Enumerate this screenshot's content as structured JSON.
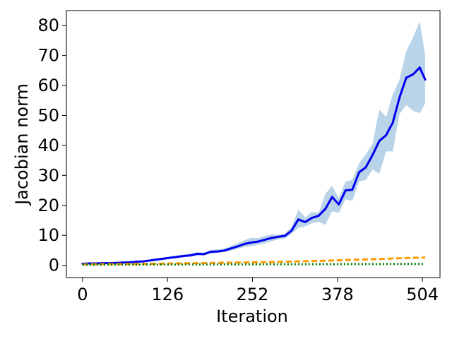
{
  "chart_data": {
    "type": "line",
    "title": "",
    "xlabel": "Iteration",
    "ylabel": "Jacobian norm",
    "xlim": [
      -24,
      530
    ],
    "ylim": [
      -4.1,
      85
    ],
    "xticks": [
      0,
      126,
      252,
      378,
      504
    ],
    "yticks": [
      0,
      10,
      20,
      30,
      40,
      50,
      60,
      70,
      80
    ],
    "grid": false,
    "legend": "none",
    "series": [
      {
        "color": "#0000ee",
        "style": "solid",
        "band_color": "#a8c8e4",
        "points": [
          [
            0,
            0.5
          ],
          [
            10,
            0.6
          ],
          [
            20,
            0.6
          ],
          [
            30,
            0.7
          ],
          [
            40,
            0.7
          ],
          [
            50,
            0.8
          ],
          [
            60,
            0.9
          ],
          [
            70,
            1.0
          ],
          [
            80,
            1.2
          ],
          [
            90,
            1.3
          ],
          [
            100,
            1.6
          ],
          [
            110,
            1.9
          ],
          [
            120,
            2.2
          ],
          [
            130,
            2.5
          ],
          [
            140,
            2.8
          ],
          [
            150,
            3.1
          ],
          [
            160,
            3.3
          ],
          [
            170,
            3.8
          ],
          [
            180,
            3.7
          ],
          [
            190,
            4.5
          ],
          [
            200,
            4.6
          ],
          [
            210,
            4.9
          ],
          [
            220,
            5.6
          ],
          [
            230,
            6.3
          ],
          [
            240,
            7.1
          ],
          [
            250,
            7.6
          ],
          [
            260,
            7.9
          ],
          [
            270,
            8.5
          ],
          [
            280,
            9.1
          ],
          [
            290,
            9.5
          ],
          [
            300,
            9.8
          ],
          [
            310,
            11.6
          ],
          [
            320,
            15.3
          ],
          [
            330,
            14.4
          ],
          [
            340,
            15.8
          ],
          [
            350,
            16.5
          ],
          [
            360,
            18.8
          ],
          [
            370,
            22.8
          ],
          [
            380,
            20.3
          ],
          [
            390,
            25.0
          ],
          [
            400,
            25.2
          ],
          [
            410,
            31.0
          ],
          [
            420,
            32.7
          ],
          [
            430,
            36.8
          ],
          [
            440,
            41.5
          ],
          [
            450,
            43.4
          ],
          [
            460,
            47.6
          ],
          [
            470,
            56.0
          ],
          [
            480,
            62.6
          ],
          [
            490,
            63.7
          ],
          [
            500,
            66.0
          ],
          [
            508,
            62.0
          ]
        ],
        "band_lower": [
          0.3,
          0.4,
          0.4,
          0.5,
          0.5,
          0.6,
          0.7,
          0.8,
          1.0,
          1.1,
          1.3,
          1.6,
          1.9,
          2.1,
          2.4,
          2.7,
          2.9,
          3.3,
          3.3,
          4.0,
          4.1,
          4.4,
          4.9,
          5.5,
          6.1,
          6.4,
          6.8,
          7.3,
          8.0,
          8.6,
          9.0,
          10.5,
          12.5,
          13.0,
          14.0,
          14.5,
          13.5,
          18.0,
          17.5,
          22.0,
          21.5,
          28.0,
          28.5,
          32.0,
          30.5,
          38.0,
          38.0,
          50.5,
          53.5,
          51.5,
          50.8,
          54.0
        ],
        "band_upper": [
          0.7,
          0.8,
          0.8,
          0.9,
          0.9,
          1.0,
          1.1,
          1.2,
          1.4,
          1.6,
          1.9,
          2.3,
          2.6,
          3.0,
          3.3,
          3.6,
          3.9,
          4.4,
          4.3,
          5.1,
          5.3,
          5.6,
          6.5,
          7.4,
          8.4,
          9.2,
          9.0,
          9.8,
          10.2,
          10.3,
          10.6,
          12.8,
          18.6,
          16.0,
          17.8,
          17.5,
          23.8,
          26.5,
          22.5,
          28.0,
          28.5,
          34.0,
          37.0,
          40.5,
          52.0,
          49.5,
          57.0,
          62.0,
          71.5,
          76.0,
          81.5,
          70.0
        ]
      },
      {
        "color": "#ff9900",
        "style": "dashed",
        "points": [
          [
            0,
            0.3
          ],
          [
            100,
            0.5
          ],
          [
            200,
            0.8
          ],
          [
            280,
            1.1
          ],
          [
            340,
            1.4
          ],
          [
            400,
            1.8
          ],
          [
            440,
            2.1
          ],
          [
            480,
            2.4
          ],
          [
            508,
            2.6
          ]
        ]
      },
      {
        "color": "#008000",
        "style": "dotted",
        "points": [
          [
            0,
            0.2
          ],
          [
            100,
            0.25
          ],
          [
            200,
            0.3
          ],
          [
            300,
            0.35
          ],
          [
            400,
            0.4
          ],
          [
            508,
            0.45
          ]
        ]
      }
    ]
  }
}
